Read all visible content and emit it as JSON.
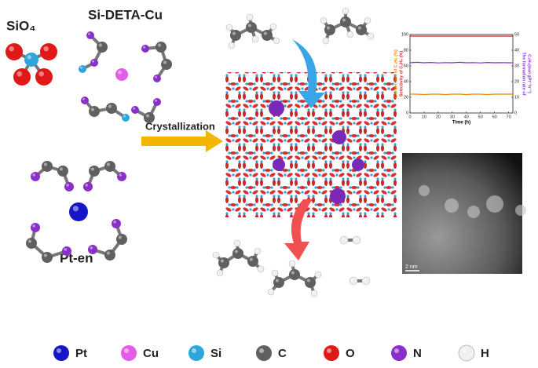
{
  "labels": {
    "sio4": "SiO₄",
    "si_deta_cu": "Si-DETA-Cu",
    "crystallization": "Crystallization",
    "pt_en": "Pt-en",
    "scale_bar": "2 nm"
  },
  "legend": [
    {
      "label": "Pt",
      "color": "#1616c8"
    },
    {
      "label": "Cu",
      "color": "#e25ce8"
    },
    {
      "label": "Si",
      "color": "#2ea6dc"
    },
    {
      "label": "C",
      "color": "#606060"
    },
    {
      "label": "O",
      "color": "#e01818"
    },
    {
      "label": "N",
      "color": "#8a2fc8"
    },
    {
      "label": "H",
      "color": "#f0f0f0"
    }
  ],
  "chart_data": {
    "type": "line",
    "x": [
      0,
      5,
      10,
      15,
      20,
      25,
      30,
      35,
      40,
      45,
      50,
      55,
      60,
      65,
      70,
      73
    ],
    "xlim": [
      0,
      73
    ],
    "xticks": [
      0,
      10,
      20,
      30,
      40,
      50,
      60,
      70
    ],
    "xlabel": "Time (h)",
    "ylim": [
      0,
      100
    ],
    "yticks": [
      0,
      20,
      40,
      60,
      80,
      100
    ],
    "ylabel_lines": [
      {
        "text": "Conversion of C₃H₈ (%)",
        "color": "#e08a00"
      },
      {
        "text": "Selectivity of C₃H₆ (%)",
        "color": "#d42020"
      }
    ],
    "y2lim": [
      0,
      50
    ],
    "y2ticks": [
      0,
      10,
      20,
      30,
      40,
      50
    ],
    "y2label_lines": [
      "The formation rate of",
      "C₃H₆(mol gPt⁻¹h⁻¹)"
    ],
    "y2label_color": "#8a2be2",
    "series": [
      {
        "name": "Conversion of C₃H₈",
        "color": "#e08a00",
        "values": [
          24,
          24,
          23.5,
          24,
          24,
          23.5,
          24,
          24,
          23.5,
          24,
          24,
          23.5,
          24,
          24,
          24,
          24
        ]
      },
      {
        "name": "Selectivity of C₃H₆",
        "color": "#d42020",
        "values": [
          98,
          98,
          98,
          98,
          98,
          98,
          98,
          98,
          98,
          98,
          98,
          98,
          98,
          98,
          98,
          98
        ]
      },
      {
        "name": "Formation rate of C₃H₆",
        "color": "#8a2be2",
        "axis": "y2",
        "values": [
          32,
          32.3,
          32,
          32.2,
          31.9,
          32.1,
          32,
          32.3,
          32,
          32.1,
          31.9,
          32.2,
          32,
          32.1,
          32,
          32
        ]
      }
    ]
  }
}
